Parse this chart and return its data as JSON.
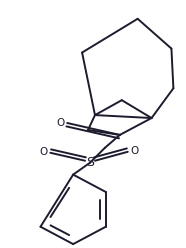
{
  "bg_color": "#ffffff",
  "line_color": "#1c1c2e",
  "line_width": 1.4,
  "figsize": [
    1.86,
    2.48
  ],
  "dpi": 100,
  "xlim": [
    0,
    186
  ],
  "ylim": [
    0,
    248
  ]
}
